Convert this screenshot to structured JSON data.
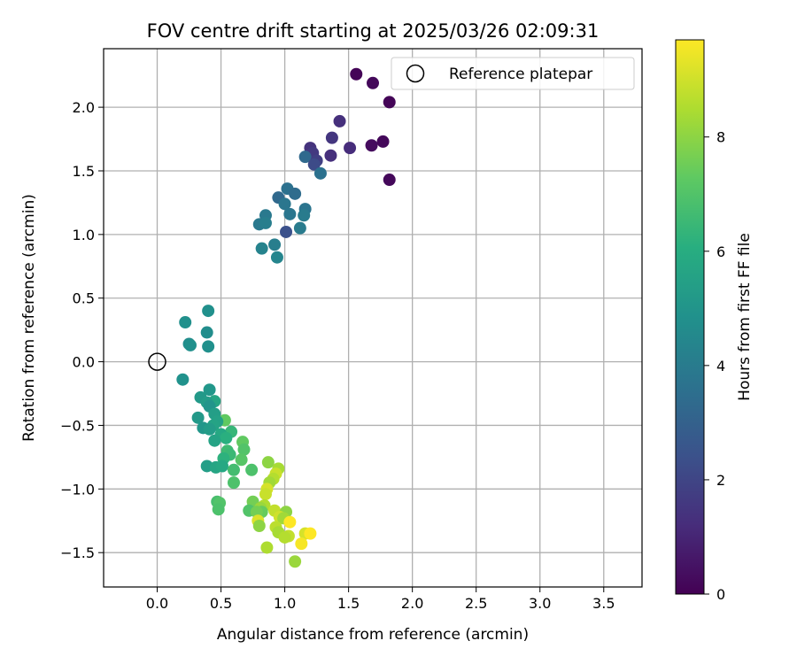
{
  "chart_data": {
    "type": "scatter",
    "title": "FOV centre drift starting at 2025/03/26 02:09:31",
    "xlabel": "Angular distance from reference (arcmin)",
    "ylabel": "Rotation from reference (arcmin)",
    "xlim": [
      -0.42,
      3.8
    ],
    "ylim": [
      -1.77,
      2.46
    ],
    "x_ticks": [
      0.0,
      0.5,
      1.0,
      1.5,
      2.0,
      2.5,
      3.0,
      3.5
    ],
    "x_tick_labels": [
      "0.0",
      "0.5",
      "1.0",
      "1.5",
      "2.0",
      "2.5",
      "3.0",
      "3.5"
    ],
    "y_ticks": [
      -1.5,
      -1.0,
      -0.5,
      0.0,
      0.5,
      1.0,
      1.5,
      2.0
    ],
    "y_tick_labels": [
      "−1.5",
      "−1.0",
      "−0.5",
      "0.0",
      "0.5",
      "1.0",
      "1.5",
      "2.0"
    ],
    "grid": true,
    "legend": {
      "placement": "top-right",
      "entries": [
        "Reference platepar"
      ]
    },
    "reference_point": {
      "x": 0.0,
      "y": 0.0,
      "label": "Reference platepar",
      "marker": "hollow-circle"
    },
    "colorbar": {
      "label": "Hours from first FF file",
      "range": [
        0,
        9.7
      ],
      "ticks": [
        0,
        2,
        4,
        6,
        8
      ],
      "tick_labels": [
        "0",
        "2",
        "4",
        "6",
        "8"
      ],
      "colormap": "viridis"
    },
    "points": [
      {
        "x": 1.56,
        "y": 2.26,
        "c": 0.1
      },
      {
        "x": 1.69,
        "y": 2.19,
        "c": 0.2
      },
      {
        "x": 1.82,
        "y": 2.04,
        "c": 0.1
      },
      {
        "x": 1.43,
        "y": 1.89,
        "c": 1.3
      },
      {
        "x": 1.37,
        "y": 1.76,
        "c": 1.5
      },
      {
        "x": 1.77,
        "y": 1.73,
        "c": 0.2
      },
      {
        "x": 1.68,
        "y": 1.7,
        "c": 0.3
      },
      {
        "x": 1.51,
        "y": 1.68,
        "c": 1.2
      },
      {
        "x": 1.2,
        "y": 1.68,
        "c": 1.4
      },
      {
        "x": 1.36,
        "y": 1.62,
        "c": 1.3
      },
      {
        "x": 1.22,
        "y": 1.64,
        "c": 1.6
      },
      {
        "x": 1.16,
        "y": 1.61,
        "c": 3.3
      },
      {
        "x": 1.25,
        "y": 1.58,
        "c": 1.8
      },
      {
        "x": 1.23,
        "y": 1.55,
        "c": 2.2
      },
      {
        "x": 1.28,
        "y": 1.48,
        "c": 3.6
      },
      {
        "x": 1.82,
        "y": 1.43,
        "c": 0.2
      },
      {
        "x": 1.02,
        "y": 1.36,
        "c": 3.6
      },
      {
        "x": 1.08,
        "y": 1.32,
        "c": 3.4
      },
      {
        "x": 0.95,
        "y": 1.29,
        "c": 3.3
      },
      {
        "x": 1.0,
        "y": 1.24,
        "c": 3.8
      },
      {
        "x": 1.16,
        "y": 1.2,
        "c": 3.7
      },
      {
        "x": 0.85,
        "y": 1.15,
        "c": 3.9
      },
      {
        "x": 1.04,
        "y": 1.16,
        "c": 3.8
      },
      {
        "x": 1.15,
        "y": 1.15,
        "c": 4.0
      },
      {
        "x": 0.8,
        "y": 1.08,
        "c": 3.9
      },
      {
        "x": 0.85,
        "y": 1.09,
        "c": 4.1
      },
      {
        "x": 1.12,
        "y": 1.05,
        "c": 4.0
      },
      {
        "x": 1.01,
        "y": 1.02,
        "c": 2.4
      },
      {
        "x": 0.92,
        "y": 0.92,
        "c": 4.1
      },
      {
        "x": 0.82,
        "y": 0.89,
        "c": 4.3
      },
      {
        "x": 0.94,
        "y": 0.82,
        "c": 4.4
      },
      {
        "x": 0.4,
        "y": 0.4,
        "c": 4.8
      },
      {
        "x": 0.22,
        "y": 0.31,
        "c": 4.8
      },
      {
        "x": 0.39,
        "y": 0.23,
        "c": 4.7
      },
      {
        "x": 0.25,
        "y": 0.14,
        "c": 4.7
      },
      {
        "x": 0.26,
        "y": 0.13,
        "c": 4.8
      },
      {
        "x": 0.4,
        "y": 0.12,
        "c": 4.8
      },
      {
        "x": 0.2,
        "y": -0.14,
        "c": 4.9
      },
      {
        "x": 0.41,
        "y": -0.22,
        "c": 5.1
      },
      {
        "x": 0.34,
        "y": -0.28,
        "c": 5.2
      },
      {
        "x": 0.45,
        "y": -0.31,
        "c": 5.7
      },
      {
        "x": 0.39,
        "y": -0.32,
        "c": 5.3
      },
      {
        "x": 0.41,
        "y": -0.35,
        "c": 5.0
      },
      {
        "x": 0.45,
        "y": -0.41,
        "c": 5.4
      },
      {
        "x": 0.32,
        "y": -0.44,
        "c": 5.2
      },
      {
        "x": 0.53,
        "y": -0.46,
        "c": 7.3
      },
      {
        "x": 0.47,
        "y": -0.47,
        "c": 5.5
      },
      {
        "x": 0.44,
        "y": -0.5,
        "c": 5.6
      },
      {
        "x": 0.36,
        "y": -0.52,
        "c": 5.1
      },
      {
        "x": 0.41,
        "y": -0.53,
        "c": 5.3
      },
      {
        "x": 0.58,
        "y": -0.55,
        "c": 6.4
      },
      {
        "x": 0.5,
        "y": -0.57,
        "c": 5.8
      },
      {
        "x": 0.54,
        "y": -0.6,
        "c": 6.1
      },
      {
        "x": 0.45,
        "y": -0.62,
        "c": 5.6
      },
      {
        "x": 0.67,
        "y": -0.63,
        "c": 7.3
      },
      {
        "x": 0.68,
        "y": -0.69,
        "c": 7.0
      },
      {
        "x": 0.55,
        "y": -0.7,
        "c": 6.6
      },
      {
        "x": 0.57,
        "y": -0.73,
        "c": 6.5
      },
      {
        "x": 0.52,
        "y": -0.76,
        "c": 6.2
      },
      {
        "x": 0.66,
        "y": -0.77,
        "c": 7.1
      },
      {
        "x": 0.87,
        "y": -0.79,
        "c": 8.0
      },
      {
        "x": 0.39,
        "y": -0.82,
        "c": 5.4
      },
      {
        "x": 0.46,
        "y": -0.83,
        "c": 5.7
      },
      {
        "x": 0.51,
        "y": -0.82,
        "c": 5.8
      },
      {
        "x": 0.6,
        "y": -0.85,
        "c": 6.7
      },
      {
        "x": 0.74,
        "y": -0.85,
        "c": 6.9
      },
      {
        "x": 0.95,
        "y": -0.84,
        "c": 8.4
      },
      {
        "x": 0.93,
        "y": -0.88,
        "c": 8.9
      },
      {
        "x": 0.91,
        "y": -0.92,
        "c": 8.6
      },
      {
        "x": 0.6,
        "y": -0.95,
        "c": 6.9
      },
      {
        "x": 0.88,
        "y": -0.95,
        "c": 8.3
      },
      {
        "x": 0.86,
        "y": -1.0,
        "c": 9.1
      },
      {
        "x": 0.85,
        "y": -1.04,
        "c": 8.9
      },
      {
        "x": 0.47,
        "y": -1.1,
        "c": 6.8
      },
      {
        "x": 0.75,
        "y": -1.1,
        "c": 7.6
      },
      {
        "x": 0.49,
        "y": -1.11,
        "c": 7.0
      },
      {
        "x": 0.84,
        "y": -1.13,
        "c": 8.5
      },
      {
        "x": 0.81,
        "y": -1.15,
        "c": 8.2
      },
      {
        "x": 0.48,
        "y": -1.16,
        "c": 6.9
      },
      {
        "x": 0.72,
        "y": -1.17,
        "c": 7.0
      },
      {
        "x": 0.92,
        "y": -1.17,
        "c": 8.8
      },
      {
        "x": 0.82,
        "y": -1.18,
        "c": 7.4
      },
      {
        "x": 1.01,
        "y": -1.18,
        "c": 8.0
      },
      {
        "x": 0.78,
        "y": -1.18,
        "c": 7.6
      },
      {
        "x": 0.96,
        "y": -1.22,
        "c": 9.0
      },
      {
        "x": 0.79,
        "y": -1.25,
        "c": 9.2
      },
      {
        "x": 0.99,
        "y": -1.23,
        "c": 8.3
      },
      {
        "x": 1.04,
        "y": -1.26,
        "c": 9.7
      },
      {
        "x": 0.8,
        "y": -1.29,
        "c": 8.0
      },
      {
        "x": 0.93,
        "y": -1.3,
        "c": 8.7
      },
      {
        "x": 0.95,
        "y": -1.34,
        "c": 8.4
      },
      {
        "x": 1.16,
        "y": -1.35,
        "c": 9.1
      },
      {
        "x": 1.2,
        "y": -1.35,
        "c": 9.7
      },
      {
        "x": 1.03,
        "y": -1.37,
        "c": 8.8
      },
      {
        "x": 1.0,
        "y": -1.38,
        "c": 8.6
      },
      {
        "x": 1.13,
        "y": -1.43,
        "c": 9.6
      },
      {
        "x": 0.86,
        "y": -1.46,
        "c": 8.5
      },
      {
        "x": 1.08,
        "y": -1.57,
        "c": 8.2
      }
    ]
  }
}
